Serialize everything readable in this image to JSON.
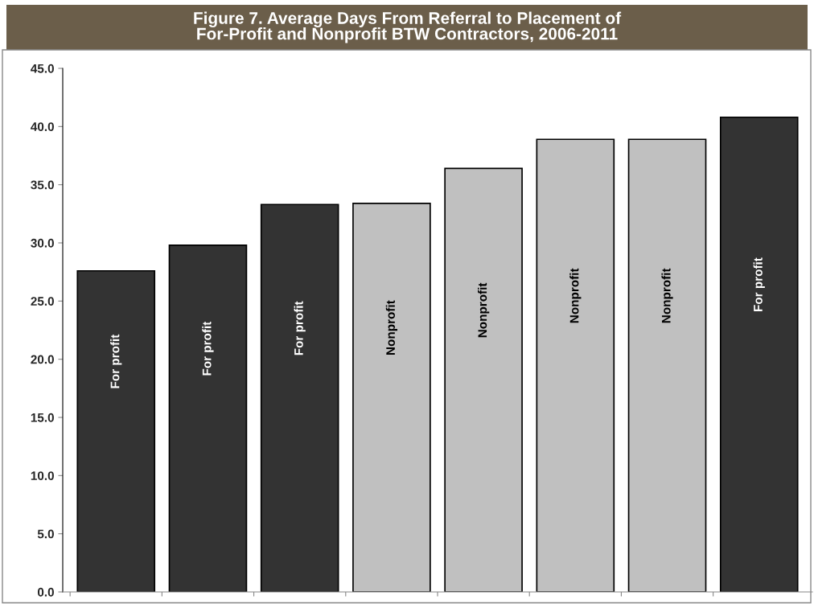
{
  "chart_data": {
    "type": "bar",
    "title": "Figure 7. Average Days From Referral to Placement of\nFor-Profit and Nonprofit BTW Contractors, 2006-2011",
    "categories": [
      "For profit",
      "For profit",
      "For profit",
      "Nonprofit",
      "Nonprofit",
      "Nonprofit",
      "Nonprofit",
      "For profit"
    ],
    "values": [
      27.6,
      29.8,
      33.3,
      33.4,
      36.4,
      38.9,
      38.9,
      40.8
    ],
    "colors": [
      "#333333",
      "#333333",
      "#333333",
      "#c0c0c0",
      "#c0c0c0",
      "#c0c0c0",
      "#c0c0c0",
      "#333333"
    ],
    "ylim": [
      0,
      45
    ],
    "yticks": [
      {
        "value": 0,
        "label": "0.0"
      },
      {
        "value": 5,
        "label": "5.0"
      },
      {
        "value": 10,
        "label": "10.0"
      },
      {
        "value": 15,
        "label": "15.0"
      },
      {
        "value": 20,
        "label": "20.0"
      },
      {
        "value": 25,
        "label": "25.0"
      },
      {
        "value": 30,
        "label": "30.0"
      },
      {
        "value": 35,
        "label": "35.0"
      },
      {
        "value": 40,
        "label": "40.0"
      },
      {
        "value": 45,
        "label": "45.0"
      }
    ],
    "grid": false,
    "legend": false
  }
}
